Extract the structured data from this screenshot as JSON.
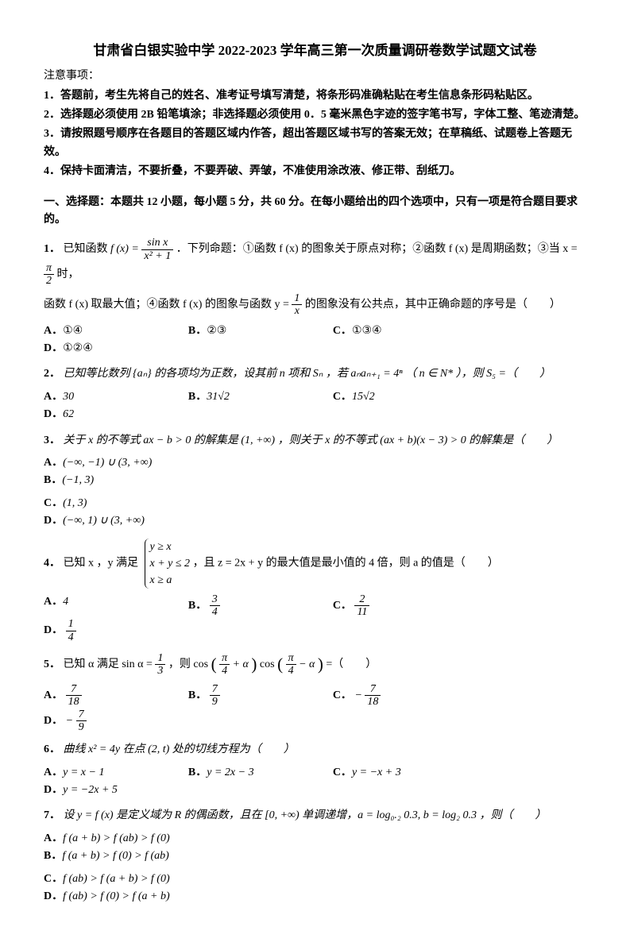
{
  "title": "甘肃省白银实验中学 2022-2023 学年高三第一次质量调研卷数学试题文试卷",
  "notice_header": "注意事项：",
  "notices": [
    "1．答题前，考生先将自己的姓名、准考证号填写清楚，将条形码准确粘贴在考生信息条形码粘贴区。",
    "2．选择题必须使用 2B 铅笔填涂；非选择题必须使用 0．5 毫米黑色字迹的签字笔书写，字体工整、笔迹清楚。",
    "3．请按照题号顺序在各题目的答题区域内作答，超出答题区域书写的答案无效；在草稿纸、试题卷上答题无效。",
    "4．保持卡面清洁，不要折叠，不要弄破、弄皱，不准使用涂改液、修正带、刮纸刀。"
  ],
  "section": "一、选择题：本题共 12 小题，每小题 5 分，共 60 分。在每小题给出的四个选项中，只有一项是符合题目要求的。",
  "q1": {
    "num": "1．",
    "body_a": "已知函数 ",
    "fx": "f (x) = ",
    "frac_num": "sin x",
    "frac_den": "x² + 1",
    "body_b": "．下列命题：①函数 f (x) 的图象关于原点对称；②函数 f (x) 是周期函数；③当 x = ",
    "pi_half_num": "π",
    "pi_half_den": "2",
    "body_c": " 时，",
    "line2_a": "函数 f (x) 取最大值；④函数 f (x) 的图象与函数 y = ",
    "frac2_num": "1",
    "frac2_den": "x",
    "line2_b": " 的图象没有公共点，其中正确命题的序号是（　　）",
    "opts": {
      "A": "①④",
      "B": "②③",
      "C": "①③④",
      "D": "①②④"
    }
  },
  "q2": {
    "num": "2．",
    "body": "已知等比数列 {aₙ} 的各项均为正数，设其前 n 项和 Sₙ ，若 aₙaₙ₊₁ = 4ⁿ （ n ∈ N* ），则 S₅ =（　　）",
    "opts": {
      "A": "30",
      "B": "31√2",
      "C": "15√2",
      "D": "62"
    }
  },
  "q3": {
    "num": "3．",
    "body": "关于 x 的不等式 ax − b > 0 的解集是 (1, +∞) ，则关于 x 的不等式 (ax + b)(x − 3) > 0 的解集是（　　）",
    "opts": {
      "A": "(−∞, −1) ∪ (3, +∞)",
      "B": "(−1, 3)",
      "C": "(1, 3)",
      "D": "(−∞, 1) ∪ (3, +∞)"
    }
  },
  "q4": {
    "num": "4．",
    "body_a": "已知 x ，y 满足 ",
    "brace1": "y ≥ x",
    "brace2": "x + y ≤ 2",
    "brace3": "x ≥ a",
    "body_b": "，且 z = 2x + y 的最大值是最小值的 4 倍，则 a 的值是（　　）",
    "opts": {
      "A": "4",
      "B": {
        "num": "3",
        "den": "4"
      },
      "C": {
        "num": "2",
        "den": "11"
      },
      "D": {
        "num": "1",
        "den": "4"
      }
    }
  },
  "q5": {
    "num": "5．",
    "body_a": "已知 α 满足 sin α = ",
    "frac_num": "1",
    "frac_den": "3",
    "body_b": "，则 cos",
    "arg1_num": "π",
    "arg1_den": "4",
    "arg1_suffix": " + α",
    "body_c": "cos",
    "arg2_num": "π",
    "arg2_den": "4",
    "arg2_suffix": " − α",
    "body_d": " =（　　）",
    "opts": {
      "A": {
        "num": "7",
        "den": "18"
      },
      "B": {
        "num": "7",
        "den": "9"
      },
      "C": {
        "prefix": "−",
        "num": "7",
        "den": "18"
      },
      "D": {
        "prefix": "−",
        "num": "7",
        "den": "9"
      }
    }
  },
  "q6": {
    "num": "6．",
    "body": "曲线 x² = 4y 在点 (2, t) 处的切线方程为（　　）",
    "opts": {
      "A": "y = x − 1",
      "B": "y = 2x − 3",
      "C": "y = −x + 3",
      "D": "y = −2x + 5"
    }
  },
  "q7": {
    "num": "7．",
    "body": "设 y = f (x) 是定义域为 R 的偶函数，且在 [0, +∞) 单调递增，a = log₀.₂ 0.3, b = log₂ 0.3 ，则（　　）",
    "opts": {
      "A": "f (a + b) > f (ab) > f (0)",
      "B": "f (a + b) > f (0) > f (ab)",
      "C": "f (ab) > f (a + b) > f (0)",
      "D": "f (ab) > f (0) > f (a + b)"
    }
  }
}
